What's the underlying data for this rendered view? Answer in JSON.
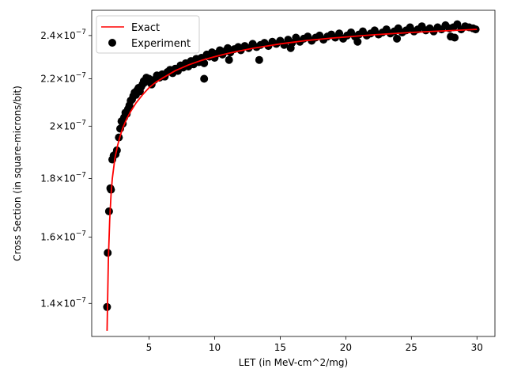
{
  "chart_data": {
    "type": "scatter",
    "title": "",
    "xlabel": "LET (in MeV-cm^2/mg)",
    "ylabel": "Cross Section (in square-microns/bit)",
    "xlim": [
      0.63,
      31.37
    ],
    "ylim": [
      1.31e-07,
      2.525e-07
    ],
    "yscale": "log",
    "grid": false,
    "legend_position": "top-left",
    "x_ticks": [
      {
        "value": 5,
        "label": "5"
      },
      {
        "value": 10,
        "label": "10"
      },
      {
        "value": 15,
        "label": "15"
      },
      {
        "value": 20,
        "label": "20"
      },
      {
        "value": 25,
        "label": "25"
      },
      {
        "value": 30,
        "label": "30"
      }
    ],
    "y_ticks": [
      {
        "value": 1.4e-07,
        "mantissa": "1.4",
        "exponent": "−7"
      },
      {
        "value": 1.6e-07,
        "mantissa": "1.6",
        "exponent": "−7"
      },
      {
        "value": 1.8e-07,
        "mantissa": "1.8",
        "exponent": "−7"
      },
      {
        "value": 2e-07,
        "mantissa": "2",
        "exponent": "−7"
      },
      {
        "value": 2.2e-07,
        "mantissa": "2.2",
        "exponent": "−7"
      },
      {
        "value": 2.4e-07,
        "mantissa": "2.4",
        "exponent": "−7"
      }
    ],
    "series": [
      {
        "name": "Exact",
        "kind": "line",
        "color": "#ff0000",
        "x": [
          1.8,
          1.9,
          2.0,
          2.1,
          2.2,
          2.4,
          2.6,
          2.8,
          3.0,
          3.3,
          3.6,
          4.0,
          4.5,
          5.0,
          5.5,
          6.0,
          7.0,
          8.0,
          9.0,
          10.0,
          11.0,
          12.0,
          13.0,
          14.0,
          15.0,
          16.0,
          17.0,
          18.0,
          19.0,
          20.0,
          21.0,
          22.0,
          23.0,
          24.0,
          25.0,
          26.0,
          27.0,
          28.0,
          29.0,
          30.0
        ],
        "y": [
          1.325e-07,
          1.53e-07,
          1.655e-07,
          1.74e-07,
          1.8e-07,
          1.876e-07,
          1.923e-07,
          1.961e-07,
          1.993e-07,
          2.03e-07,
          2.06e-07,
          2.095e-07,
          2.13e-07,
          2.161e-07,
          2.184e-07,
          2.202e-07,
          2.236e-07,
          2.262e-07,
          2.283e-07,
          2.3e-07,
          2.315e-07,
          2.328e-07,
          2.34e-07,
          2.35e-07,
          2.36e-07,
          2.368e-07,
          2.376e-07,
          2.382e-07,
          2.388e-07,
          2.393e-07,
          2.398e-07,
          2.403e-07,
          2.407e-07,
          2.411e-07,
          2.415e-07,
          2.418e-07,
          2.421e-07,
          2.424e-07,
          2.427e-07,
          2.43e-07
        ]
      },
      {
        "name": "Experiment",
        "kind": "scatter",
        "color": "#000000",
        "x": [
          1.8,
          1.85,
          1.95,
          2.05,
          2.1,
          2.2,
          2.3,
          2.45,
          2.55,
          2.7,
          2.8,
          2.9,
          3.0,
          3.1,
          3.2,
          3.3,
          3.4,
          3.5,
          3.6,
          3.7,
          3.8,
          3.9,
          4.0,
          4.1,
          4.2,
          4.3,
          4.4,
          4.5,
          4.6,
          4.7,
          4.8,
          4.9,
          5.0,
          5.2,
          5.4,
          5.6,
          5.8,
          6.0,
          6.2,
          6.4,
          6.6,
          6.8,
          7.0,
          7.2,
          7.4,
          7.6,
          7.8,
          8.0,
          8.2,
          8.4,
          8.6,
          8.8,
          9.0,
          9.2,
          9.4,
          9.6,
          9.8,
          10.0,
          10.2,
          10.4,
          10.6,
          10.8,
          11.0,
          11.2,
          11.5,
          11.8,
          12.0,
          12.3,
          12.6,
          12.9,
          13.2,
          13.5,
          13.8,
          14.1,
          14.4,
          14.7,
          15.0,
          15.3,
          15.6,
          15.9,
          16.2,
          16.5,
          16.8,
          17.1,
          17.4,
          17.7,
          18.0,
          18.3,
          18.6,
          18.9,
          19.2,
          19.5,
          19.8,
          20.1,
          20.4,
          20.7,
          21.0,
          21.3,
          21.6,
          21.9,
          22.2,
          22.5,
          22.8,
          23.1,
          23.4,
          23.7,
          24.0,
          24.3,
          24.6,
          24.9,
          25.2,
          25.5,
          25.8,
          26.1,
          26.4,
          26.7,
          27.0,
          27.3,
          27.6,
          27.9,
          28.2,
          28.5,
          28.8,
          29.1,
          29.4,
          29.7,
          29.9,
          9.2,
          11.1,
          13.4,
          15.8,
          20.9,
          23.9,
          28.0,
          28.3
        ],
        "y": [
          1.39e-07,
          1.55e-07,
          1.685e-07,
          1.765e-07,
          1.76e-07,
          1.87e-07,
          1.885e-07,
          1.89e-07,
          1.905e-07,
          1.955e-07,
          1.99e-07,
          2.02e-07,
          2.01e-07,
          2.035e-07,
          2.055e-07,
          2.05e-07,
          2.07e-07,
          2.085e-07,
          2.105e-07,
          2.11e-07,
          2.125e-07,
          2.14e-07,
          2.13e-07,
          2.15e-07,
          2.16e-07,
          2.145e-07,
          2.165e-07,
          2.175e-07,
          2.19e-07,
          2.185e-07,
          2.205e-07,
          2.19e-07,
          2.2e-07,
          2.175e-07,
          2.195e-07,
          2.215e-07,
          2.205e-07,
          2.22e-07,
          2.21e-07,
          2.23e-07,
          2.24e-07,
          2.225e-07,
          2.245e-07,
          2.235e-07,
          2.26e-07,
          2.25e-07,
          2.27e-07,
          2.255e-07,
          2.28e-07,
          2.265e-07,
          2.29e-07,
          2.275e-07,
          2.295e-07,
          2.27e-07,
          2.31e-07,
          2.3e-07,
          2.32e-07,
          2.295e-07,
          2.315e-07,
          2.33e-07,
          2.31e-07,
          2.325e-07,
          2.34e-07,
          2.32e-07,
          2.335e-07,
          2.345e-07,
          2.33e-07,
          2.35e-07,
          2.34e-07,
          2.36e-07,
          2.345e-07,
          2.355e-07,
          2.365e-07,
          2.35e-07,
          2.37e-07,
          2.36e-07,
          2.375e-07,
          2.355e-07,
          2.38e-07,
          2.365e-07,
          2.39e-07,
          2.37e-07,
          2.385e-07,
          2.395e-07,
          2.375e-07,
          2.39e-07,
          2.4e-07,
          2.38e-07,
          2.395e-07,
          2.405e-07,
          2.39e-07,
          2.41e-07,
          2.385e-07,
          2.4e-07,
          2.415e-07,
          2.395e-07,
          2.405e-07,
          2.42e-07,
          2.4e-07,
          2.41e-07,
          2.425e-07,
          2.405e-07,
          2.415e-07,
          2.43e-07,
          2.41e-07,
          2.42e-07,
          2.435e-07,
          2.415e-07,
          2.425e-07,
          2.44e-07,
          2.42e-07,
          2.43e-07,
          2.445e-07,
          2.425e-07,
          2.435e-07,
          2.42e-07,
          2.44e-07,
          2.43e-07,
          2.45e-07,
          2.435e-07,
          2.44e-07,
          2.455e-07,
          2.43e-07,
          2.445e-07,
          2.44e-07,
          2.435e-07,
          2.43e-07,
          2.2e-07,
          2.285e-07,
          2.285e-07,
          2.34e-07,
          2.37e-07,
          2.385e-07,
          2.395e-07,
          2.39e-07
        ]
      }
    ]
  }
}
